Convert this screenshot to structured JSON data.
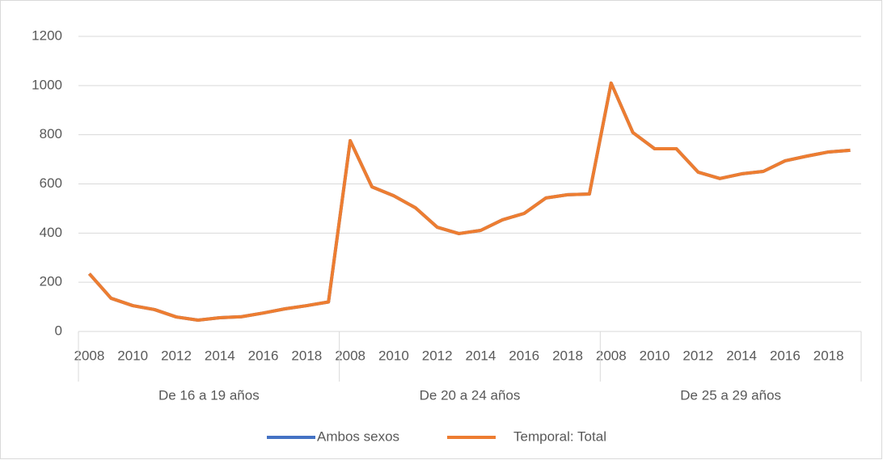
{
  "chart_data": {
    "type": "line",
    "categories": [
      "2008",
      null,
      "2010",
      null,
      "2012",
      null,
      "2014",
      null,
      "2016",
      null,
      "2018",
      null,
      "2008",
      null,
      "2010",
      null,
      "2012",
      null,
      "2014",
      null,
      "2016",
      null,
      "2018",
      null,
      "2008",
      null,
      "2010",
      null,
      "2012",
      null,
      "2014",
      null,
      "2016",
      null,
      "2018",
      null
    ],
    "category_groups": [
      "De 16 a 19 años",
      "De 20 a 24 años",
      "De 25 a 29 años"
    ],
    "series": [
      {
        "name": "Ambos sexos",
        "color": "#4472c4",
        "values": [
          235,
          135,
          105,
          89,
          59,
          46,
          56,
          60,
          75,
          92,
          105,
          120,
          776,
          588,
          552,
          503,
          424,
          398,
          411,
          454,
          480,
          543,
          556,
          559,
          1010,
          809,
          743,
          743,
          648,
          622,
          641,
          651,
          694,
          713,
          730,
          737
        ]
      },
      {
        "name": "Temporal: Total",
        "color": "#ed7d31",
        "values": [
          235,
          135,
          105,
          89,
          59,
          46,
          56,
          60,
          75,
          92,
          105,
          120,
          776,
          588,
          552,
          503,
          424,
          398,
          411,
          454,
          480,
          543,
          556,
          559,
          1010,
          809,
          743,
          743,
          648,
          622,
          641,
          651,
          694,
          713,
          730,
          737
        ]
      }
    ],
    "ylim": [
      0,
      1200
    ],
    "yticks": [
      0,
      200,
      400,
      600,
      800,
      1000,
      1200
    ],
    "grid": true,
    "legend": "bottom"
  }
}
